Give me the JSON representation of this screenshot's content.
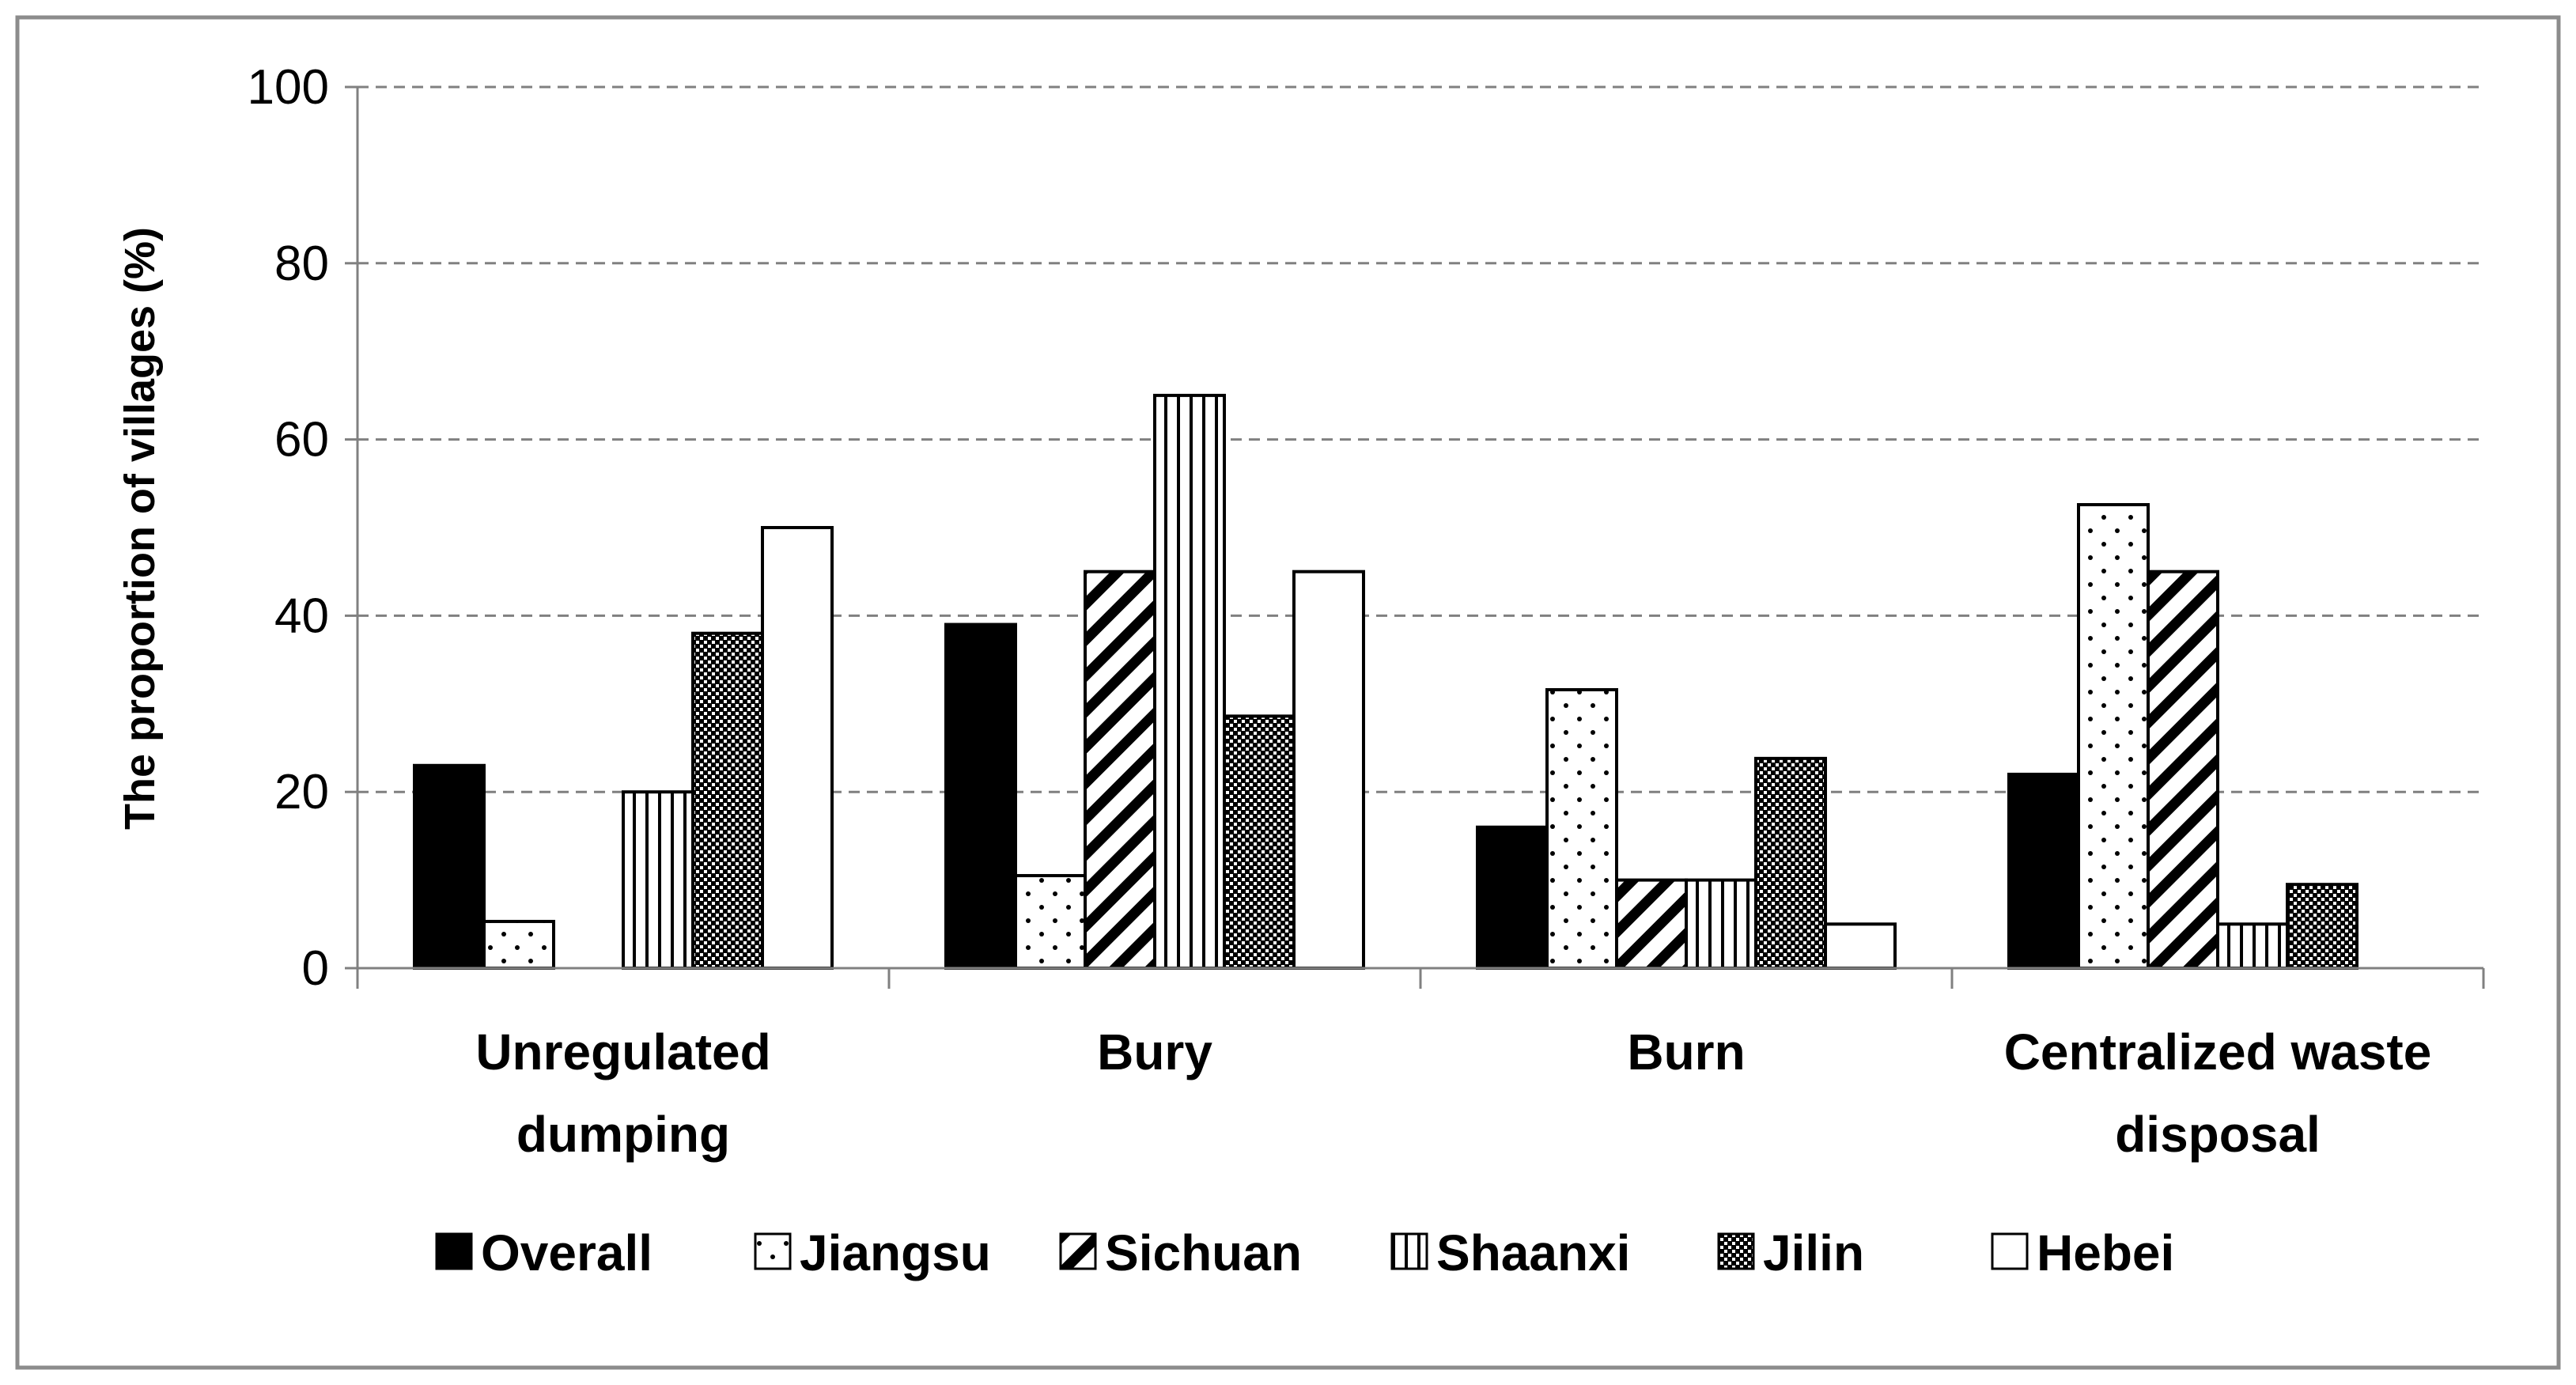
{
  "chart_data": {
    "type": "bar",
    "title": "",
    "xlabel": "",
    "ylabel": "The proportion of villages (%)",
    "ylim": [
      0,
      100
    ],
    "yticks": [
      0,
      20,
      40,
      60,
      80,
      100
    ],
    "grid": "horizontal dashed",
    "legend_position": "bottom",
    "categories": [
      [
        "Unregulated",
        "dumping"
      ],
      [
        "Bury"
      ],
      [
        "Burn"
      ],
      [
        "Centralized waste",
        "disposal"
      ]
    ],
    "series": [
      {
        "name": "Overall",
        "pattern": "solid-black",
        "values": [
          23,
          39,
          16,
          22
        ]
      },
      {
        "name": "Jiangsu",
        "pattern": "dots",
        "values": [
          5.3,
          10.5,
          31.6,
          52.6
        ]
      },
      {
        "name": "Sichuan",
        "pattern": "diagonal",
        "values": [
          0,
          45,
          10,
          45
        ]
      },
      {
        "name": "Shaanxi",
        "pattern": "vertical",
        "values": [
          20,
          65,
          10,
          5
        ]
      },
      {
        "name": "Jilin",
        "pattern": "checker",
        "values": [
          38,
          28.6,
          23.8,
          9.5
        ]
      },
      {
        "name": "Hebei",
        "pattern": "white",
        "values": [
          50,
          45,
          5,
          0
        ]
      }
    ]
  }
}
